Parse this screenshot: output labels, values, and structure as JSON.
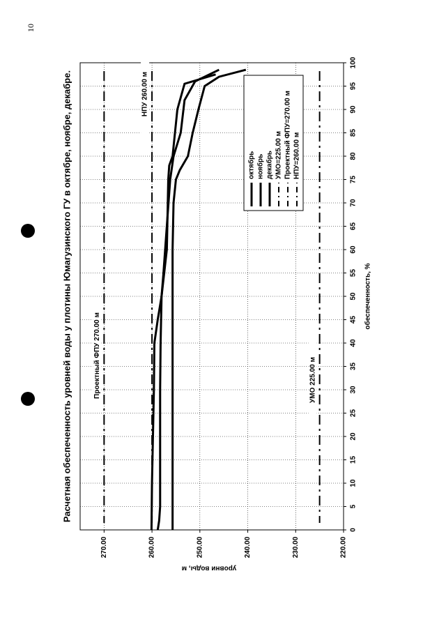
{
  "page_number": "10",
  "chart_data": {
    "type": "line",
    "title": "Расчетная обеспеченность уровней воды у плотины Юмагузинского ГУ в октябре, ноябре, декабре.",
    "x_label": "обеспеченность, %",
    "y_label": "уровни воды, м",
    "xlim": [
      0,
      100
    ],
    "xticks": [
      0,
      5,
      10,
      15,
      20,
      25,
      30,
      35,
      40,
      45,
      50,
      55,
      60,
      65,
      70,
      75,
      80,
      85,
      90,
      95,
      100
    ],
    "ylim": [
      220,
      275
    ],
    "yticks": [
      {
        "value": 220,
        "label": "220.00"
      },
      {
        "value": 230,
        "label": "230.00"
      },
      {
        "value": 240,
        "label": "240.00"
      },
      {
        "value": 250,
        "label": "250.00"
      },
      {
        "value": 260,
        "label": "260.00"
      },
      {
        "value": 270,
        "label": "270.00"
      }
    ],
    "grid": true,
    "series": [
      {
        "name": "октябрь",
        "color": "#000000",
        "x": [
          0,
          10,
          20,
          30,
          40,
          50,
          60,
          70,
          75,
          77,
          80,
          85,
          90,
          95,
          97,
          98.5
        ],
        "values": [
          255.7,
          255.7,
          255.7,
          255.7,
          255.7,
          255.7,
          255.7,
          255.5,
          255,
          254.2,
          252.5,
          251.5,
          250.3,
          249,
          246,
          240.4
        ]
      },
      {
        "name": "ноябрь",
        "color": "#000000",
        "x": [
          0,
          2,
          5,
          10,
          20,
          30,
          40,
          50,
          55,
          65,
          75,
          80,
          85,
          92,
          96,
          98.5
        ],
        "values": [
          258.8,
          258.5,
          258.3,
          258.3,
          258.3,
          258.3,
          258.2,
          258,
          257.6,
          256.9,
          256.2,
          255.5,
          254,
          253.2,
          251,
          246
        ]
      },
      {
        "name": "декабрь",
        "color": "#000000",
        "x": [
          0,
          10,
          20,
          30,
          40,
          45,
          50,
          60,
          70,
          75,
          78,
          80,
          90,
          95.5,
          97.5
        ],
        "values": [
          260.1,
          260,
          259.8,
          259.6,
          259.5,
          258.8,
          258,
          256.9,
          256.7,
          256.6,
          256.4,
          255.7,
          254.7,
          253.2,
          246.7
        ]
      }
    ],
    "reference_lines": [
      {
        "name": "УМО=225.00 м",
        "annotation": "УМО 225.00 м",
        "value": 225
      },
      {
        "name": "Проектный ФПУ=270.00 м",
        "annotation": "Проектный ФПУ 270.00 м",
        "value": 270
      },
      {
        "name": "НПУ=260.00 м",
        "annotation": "НПУ 260.00 м",
        "value": 260
      }
    ]
  }
}
